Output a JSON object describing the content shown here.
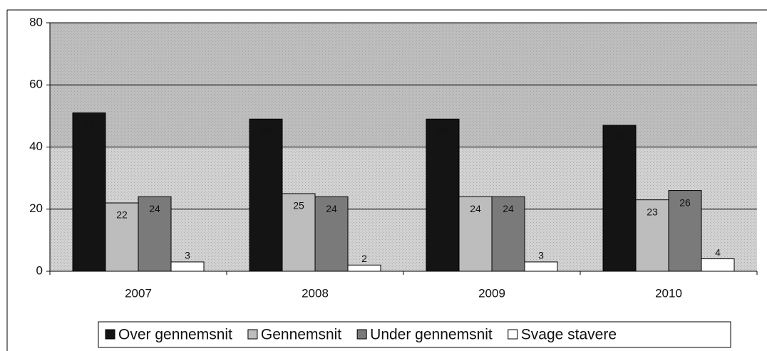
{
  "chart_data": {
    "type": "bar",
    "categories": [
      "2007",
      "2008",
      "2009",
      "2010"
    ],
    "series": [
      {
        "name": "Over gennemsnit",
        "color": "#141414",
        "values": [
          51,
          49,
          49,
          47
        ]
      },
      {
        "name": "Gennemsnit",
        "color": "#bdbdbd",
        "values": [
          22,
          25,
          24,
          23
        ]
      },
      {
        "name": "Under gennemsnit",
        "color": "#7a7a7a",
        "values": [
          24,
          24,
          24,
          26
        ]
      },
      {
        "name": "Svage stavere",
        "color": "#ffffff",
        "values": [
          3,
          2,
          3,
          4
        ]
      }
    ],
    "ylim": [
      0,
      80
    ],
    "yticks": [
      0,
      20,
      40,
      60,
      80
    ],
    "grid": true,
    "legend": "bottom"
  }
}
